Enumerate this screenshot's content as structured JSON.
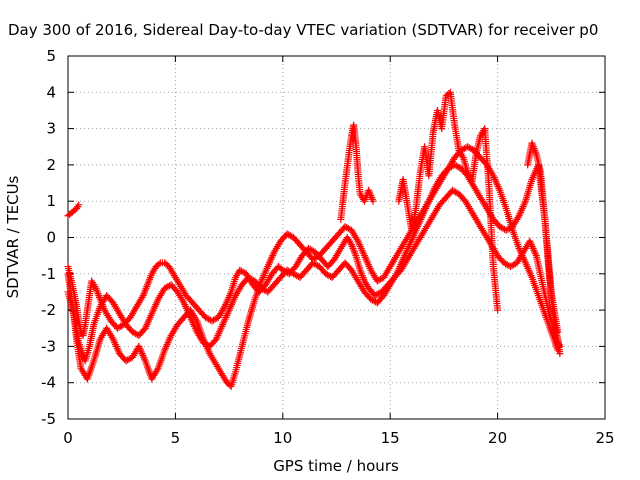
{
  "chart_data": {
    "type": "scatter",
    "title": "Day 300 of 2016, Sidereal Day-to-day VTEC variation (SDTVAR) for receiver p0",
    "xlabel": "GPS time / hours",
    "ylabel": "SDTVAR / TECUs",
    "xlim": [
      0,
      25
    ],
    "ylim": [
      -5,
      5
    ],
    "xticks": [
      0,
      5,
      10,
      15,
      20,
      25
    ],
    "yticks": [
      -5,
      -4,
      -3,
      -2,
      -1,
      0,
      1,
      2,
      3,
      4,
      5
    ],
    "grid": true,
    "legend": "none",
    "marker": "+",
    "color": "#ff0000",
    "series": [
      {
        "x": [
          0.0,
          0.2,
          0.4,
          0.5,
          0.6,
          0.7,
          0.8,
          0.9,
          1.0,
          1.1,
          1.3,
          1.5,
          1.7,
          2.0,
          2.3,
          2.6,
          2.9,
          3.1,
          3.3,
          3.5,
          3.7,
          3.9,
          4.1,
          4.3,
          4.5,
          4.7,
          4.9,
          5.1,
          5.3,
          5.5,
          5.8,
          6.1,
          6.4,
          6.7,
          7.0,
          7.3,
          7.6,
          7.8,
          8.0,
          8.3,
          8.6,
          8.9,
          9.2,
          9.5,
          9.8,
          10.0,
          10.3,
          10.6,
          10.9,
          11.2,
          11.5,
          11.8,
          12.1,
          12.4,
          12.7,
          13.0,
          13.2,
          13.4,
          13.6,
          13.8,
          14.0,
          14.3,
          14.6,
          14.9,
          15.2,
          15.5,
          15.8,
          16.1,
          16.4,
          16.7,
          17.0,
          17.3,
          17.6,
          17.9,
          18.2,
          18.5,
          18.8,
          19.1,
          19.4,
          19.7,
          20.0,
          20.3,
          20.6,
          20.9,
          21.2,
          21.5,
          21.8,
          22.1,
          22.4,
          22.7,
          22.9
        ],
        "y": [
          -0.8,
          -1.3,
          -1.9,
          -2.3,
          -2.6,
          -2.7,
          -2.4,
          -2.0,
          -1.6,
          -1.2,
          -1.4,
          -1.7,
          -2.0,
          -2.3,
          -2.5,
          -2.4,
          -2.2,
          -2.0,
          -1.8,
          -1.6,
          -1.3,
          -1.0,
          -0.8,
          -0.7,
          -0.7,
          -0.8,
          -1.0,
          -1.2,
          -1.4,
          -1.6,
          -1.8,
          -2.0,
          -2.2,
          -2.3,
          -2.2,
          -1.9,
          -1.5,
          -1.1,
          -0.9,
          -1.0,
          -1.3,
          -1.5,
          -1.3,
          -1.0,
          -0.8,
          -0.9,
          -1.0,
          -0.8,
          -0.5,
          -0.3,
          -0.4,
          -0.6,
          -0.8,
          -0.6,
          -0.3,
          0.0,
          -0.2,
          -0.5,
          -0.9,
          -1.2,
          -1.4,
          -1.6,
          -1.5,
          -1.3,
          -1.1,
          -0.9,
          -0.6,
          -0.3,
          0.0,
          0.3,
          0.6,
          0.9,
          1.1,
          1.3,
          1.2,
          1.0,
          0.7,
          0.4,
          0.1,
          -0.2,
          -0.5,
          -0.7,
          -0.8,
          -0.7,
          -0.4,
          -0.1,
          -0.5,
          -1.3,
          -2.1,
          -2.7,
          -3.0
        ]
      },
      {
        "x": [
          0.0,
          0.3,
          0.5,
          0.8,
          1.0,
          1.2,
          1.5,
          1.8,
          2.1,
          2.4,
          2.7,
          3.0,
          3.3,
          3.6,
          3.9,
          4.2,
          4.5,
          4.8,
          5.1,
          5.4,
          5.7,
          6.0,
          6.3,
          6.6,
          6.9,
          7.2,
          7.5,
          7.8,
          8.1,
          8.4,
          8.7,
          9.0,
          9.3,
          9.6,
          9.9,
          10.2,
          10.5,
          10.8,
          11.1,
          11.4,
          11.7,
          12.0,
          12.3,
          12.6,
          12.9,
          13.2,
          13.5,
          13.8,
          14.1,
          14.4,
          14.7,
          15.0,
          15.3,
          15.6,
          15.9,
          16.2,
          16.5,
          16.8,
          17.1,
          17.4,
          17.7,
          18.0,
          18.3,
          18.6,
          18.9,
          19.2,
          19.5,
          19.8,
          20.1,
          20.4,
          20.7,
          21.0,
          21.3,
          21.6,
          21.9,
          22.2,
          22.5,
          22.8
        ],
        "y": [
          -1.5,
          -2.2,
          -2.9,
          -3.4,
          -3.0,
          -2.4,
          -1.9,
          -1.6,
          -1.8,
          -2.1,
          -2.4,
          -2.6,
          -2.7,
          -2.5,
          -2.1,
          -1.7,
          -1.4,
          -1.3,
          -1.5,
          -1.8,
          -2.2,
          -2.6,
          -2.9,
          -3.0,
          -2.8,
          -2.4,
          -2.0,
          -1.6,
          -1.3,
          -1.1,
          -1.2,
          -1.4,
          -1.5,
          -1.3,
          -1.1,
          -0.9,
          -1.0,
          -1.1,
          -0.9,
          -0.7,
          -0.8,
          -1.0,
          -1.1,
          -0.9,
          -0.7,
          -0.9,
          -1.2,
          -1.5,
          -1.7,
          -1.8,
          -1.6,
          -1.3,
          -1.0,
          -0.6,
          -0.2,
          0.2,
          0.6,
          1.0,
          1.4,
          1.7,
          1.9,
          2.0,
          1.9,
          1.7,
          1.4,
          1.1,
          0.8,
          0.5,
          0.3,
          0.2,
          0.3,
          0.6,
          1.0,
          1.6,
          2.0,
          0.5,
          -1.5,
          -2.6
        ]
      },
      {
        "x": [
          0.0,
          0.2,
          0.4,
          0.6,
          0.9,
          1.2,
          1.5,
          1.8,
          2.1,
          2.4,
          2.7,
          3.0,
          3.3,
          3.6,
          3.9,
          4.2,
          4.5,
          4.8,
          5.1,
          5.4,
          5.7,
          6.0,
          6.3,
          6.6,
          6.9,
          7.2,
          7.4,
          7.6,
          7.8,
          8.1,
          8.4,
          8.7,
          9.0,
          9.3,
          9.6,
          9.9,
          10.2,
          10.5,
          10.8,
          11.1,
          11.4,
          11.7,
          12.0,
          12.3,
          12.6,
          12.9,
          13.2,
          13.5,
          13.8,
          14.1,
          14.4,
          14.7,
          15.0,
          15.3,
          15.6,
          15.9,
          16.2,
          16.5,
          16.8,
          17.1,
          17.4,
          17.7,
          18.0,
          18.3,
          18.6,
          18.9,
          19.2,
          19.5,
          19.8,
          20.1,
          20.4,
          20.7,
          21.0,
          21.3,
          21.6,
          21.9,
          22.2,
          22.5,
          22.8
        ],
        "y": [
          -1.0,
          -1.8,
          -2.8,
          -3.6,
          -3.9,
          -3.4,
          -2.8,
          -2.5,
          -2.8,
          -3.2,
          -3.4,
          -3.3,
          -3.0,
          -3.4,
          -3.9,
          -3.6,
          -3.1,
          -2.7,
          -2.4,
          -2.2,
          -2.0,
          -2.3,
          -2.8,
          -3.2,
          -3.5,
          -3.8,
          -4.0,
          -4.1,
          -3.7,
          -3.0,
          -2.3,
          -1.7,
          -1.2,
          -0.8,
          -0.4,
          -0.1,
          0.1,
          0.0,
          -0.2,
          -0.4,
          -0.6,
          -0.5,
          -0.3,
          -0.1,
          0.1,
          0.3,
          0.2,
          -0.1,
          -0.5,
          -0.9,
          -1.2,
          -1.1,
          -0.8,
          -0.5,
          -0.2,
          0.1,
          0.4,
          0.7,
          1.0,
          1.3,
          1.6,
          1.9,
          2.2,
          2.4,
          2.5,
          2.4,
          2.2,
          2.0,
          1.7,
          1.3,
          0.8,
          0.2,
          -0.3,
          -0.7,
          -1.1,
          -1.6,
          -2.1,
          -2.6,
          -3.1
        ]
      },
      {
        "x": [
          0.0,
          0.2,
          0.4,
          0.5
        ],
        "y": [
          0.6,
          0.7,
          0.8,
          0.9
        ]
      },
      {
        "x": [
          12.7,
          12.9,
          13.1,
          13.2,
          13.3,
          13.4,
          13.5,
          13.6,
          13.8,
          14.0,
          14.2
        ],
        "y": [
          0.5,
          1.5,
          2.4,
          2.8,
          3.1,
          2.6,
          1.8,
          1.2,
          1.0,
          1.3,
          1.0
        ]
      },
      {
        "x": [
          15.4,
          15.6,
          15.8,
          16.0,
          16.2,
          16.4,
          16.6,
          16.8,
          17.0,
          17.2,
          17.4,
          17.6,
          17.8,
          18.0,
          18.2,
          18.4,
          18.6,
          18.8,
          19.0,
          19.2,
          19.4,
          19.6,
          19.8,
          20.0
        ],
        "y": [
          1.0,
          1.6,
          0.9,
          0.2,
          0.8,
          1.8,
          2.5,
          1.7,
          2.9,
          3.5,
          3.0,
          3.9,
          4.0,
          3.1,
          2.4,
          2.2,
          1.8,
          1.5,
          2.3,
          2.8,
          3.0,
          1.4,
          -0.8,
          -2.0
        ]
      },
      {
        "x": [
          21.4,
          21.6,
          21.8,
          22.0,
          22.2,
          22.4,
          22.6,
          22.8,
          22.9
        ],
        "y": [
          2.0,
          2.6,
          2.3,
          1.8,
          0.5,
          -1.0,
          -2.2,
          -2.8,
          -3.2
        ]
      }
    ]
  }
}
